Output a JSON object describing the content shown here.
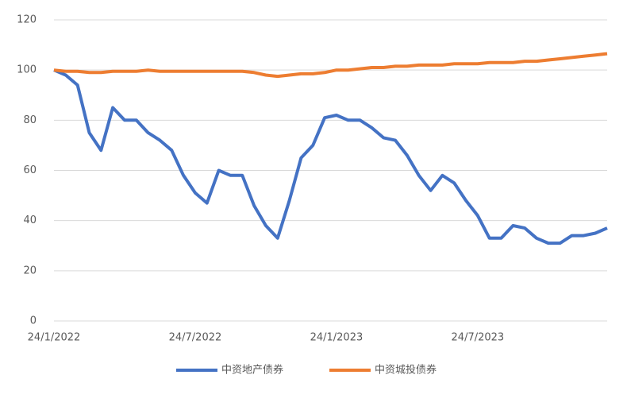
{
  "chart_data": {
    "type": "line",
    "categories": [
      "24/1/2022",
      null,
      null,
      null,
      null,
      null,
      null,
      null,
      null,
      null,
      null,
      null,
      "24/7/2022",
      null,
      null,
      null,
      null,
      null,
      null,
      null,
      null,
      null,
      null,
      null,
      "24/1/2023",
      null,
      null,
      null,
      null,
      null,
      null,
      null,
      null,
      null,
      null,
      null,
      "24/7/2023",
      null,
      null,
      null,
      null,
      null,
      null,
      null,
      null,
      null,
      null,
      null
    ],
    "series": [
      {
        "name": "中资地产债券",
        "color": "#4472c4",
        "values": [
          100,
          98,
          94,
          75,
          68,
          85,
          80,
          80,
          75,
          72,
          68,
          58,
          51,
          47,
          60,
          58,
          58,
          46,
          38,
          33,
          48,
          65,
          70,
          81,
          82,
          80,
          80,
          77,
          73,
          72,
          66,
          58,
          52,
          58,
          55,
          48,
          42,
          33,
          33,
          38,
          37,
          33,
          31,
          31,
          34,
          34,
          35,
          37
        ]
      },
      {
        "name": "中资城投债券",
        "color": "#ed7d31",
        "values": [
          100,
          99.5,
          99.5,
          99,
          99,
          99.5,
          99.5,
          99.5,
          100,
          99.5,
          99.5,
          99.5,
          99.5,
          99.5,
          99.5,
          99.5,
          99.5,
          99,
          98,
          97.5,
          98,
          98.5,
          98.5,
          99,
          100,
          100,
          100.5,
          101,
          101,
          101.5,
          101.5,
          102,
          102,
          102,
          102.5,
          102.5,
          102.5,
          103,
          103,
          103,
          103.5,
          103.5,
          104,
          104.5,
          105,
          105.5,
          106,
          106.5
        ]
      }
    ],
    "ylim": [
      0,
      120
    ],
    "yticks": [
      0,
      20,
      40,
      60,
      80,
      100,
      120
    ],
    "grid": true,
    "legend": "bottom"
  }
}
